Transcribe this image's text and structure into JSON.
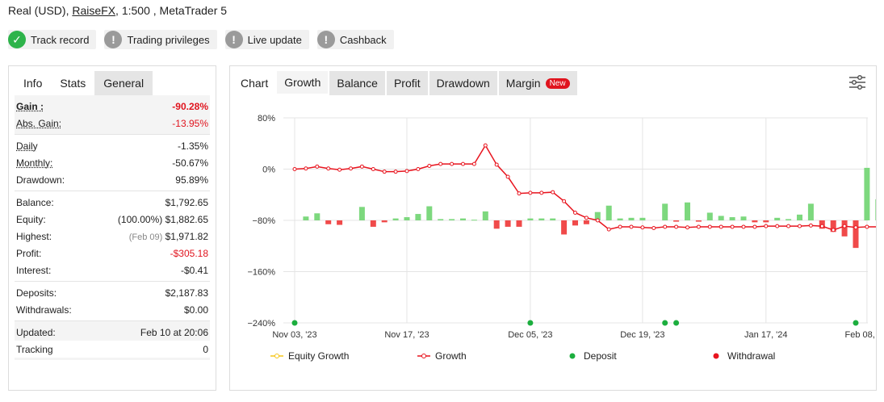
{
  "header": {
    "prefix": "Real (USD), ",
    "broker": "RaiseFX",
    "suffix": ", 1:500 , MetaTrader 5"
  },
  "badges": [
    {
      "label": "Track record",
      "icon": "check-icon",
      "status": "ok"
    },
    {
      "label": "Trading privileges",
      "icon": "exclamation-icon",
      "status": "grey"
    },
    {
      "label": "Live update",
      "icon": "exclamation-icon",
      "status": "grey"
    },
    {
      "label": "Cashback",
      "icon": "exclamation-icon",
      "status": "grey"
    }
  ],
  "left_tabs": {
    "info": "Info",
    "stats": "Stats",
    "general": "General"
  },
  "stats": {
    "gain_label": "Gain :",
    "gain_value": "-90.28%",
    "abs_gain_label": "Abs. Gain:",
    "abs_gain_value": "-13.95%",
    "daily_label": "Daily",
    "daily_value": "-1.35%",
    "monthly_label": "Monthly:",
    "monthly_value": "-50.67%",
    "drawdown_label": "Drawdown:",
    "drawdown_value": "95.89%",
    "balance_label": "Balance:",
    "balance_value": "$1,792.65",
    "equity_label": "Equity:",
    "equity_value": "(100.00%) $1,882.65",
    "highest_label": "Highest:",
    "highest_date": "(Feb 09)",
    "highest_value": "$1,971.82",
    "profit_label": "Profit:",
    "profit_value": "-$305.18",
    "interest_label": "Interest:",
    "interest_value": "-$0.41",
    "deposits_label": "Deposits:",
    "deposits_value": "$2,187.83",
    "withdrawals_label": "Withdrawals:",
    "withdrawals_value": "$0.00",
    "updated_label": "Updated:",
    "updated_value": "Feb 10 at 20:06",
    "tracking_label": "Tracking",
    "tracking_value": "0"
  },
  "right_tabs": {
    "chart": "Chart",
    "growth": "Growth",
    "balance": "Balance",
    "profit": "Profit",
    "drawdown": "Drawdown",
    "margin": "Margin",
    "new_badge": "New"
  },
  "chart_data": {
    "type": "line",
    "y_ticks": [
      "80%",
      "0%",
      "−80%",
      "−160%",
      "−240%"
    ],
    "y_tick_values": [
      80,
      0,
      -80,
      -160,
      -240
    ],
    "ylim": [
      -240,
      80
    ],
    "x_ticks": [
      "Nov 03, '23",
      "Nov 17, '23",
      "Dec 05, '23",
      "Dec 19, '23",
      "Jan 17, '24",
      "Feb 08, '24"
    ],
    "x_tick_index": [
      0,
      10,
      21,
      31,
      42,
      51
    ],
    "point_count": 53,
    "growth": [
      0,
      1,
      4,
      1,
      -1,
      1,
      4,
      0,
      -4,
      -4,
      -3,
      0,
      5,
      8,
      8,
      8,
      8,
      37,
      7,
      -12,
      -38,
      -37,
      -37,
      -36,
      -50,
      -68,
      -76,
      -80,
      -94,
      -90,
      -90,
      -91,
      -92,
      -90,
      -90,
      -91,
      -90,
      -90,
      -90,
      -90,
      -90,
      -90,
      -89,
      -89,
      -89,
      -89,
      -88,
      -89,
      -95,
      -89,
      -91,
      -90,
      -90
    ],
    "growth_bars": [
      0,
      6,
      11,
      -6,
      -7,
      0,
      21,
      -10,
      -3,
      3,
      5,
      10,
      22,
      2,
      2,
      3,
      1,
      14,
      -13,
      -10,
      -10,
      3,
      3,
      3,
      -22,
      -8,
      -6,
      13,
      23,
      3,
      4,
      4,
      0,
      26,
      -2,
      28,
      -2,
      12,
      7,
      5,
      6,
      -3,
      -3,
      4,
      2,
      9,
      26,
      -13,
      -18,
      -25,
      -43,
      82,
      33
    ],
    "deposit_points": [
      0,
      21,
      33,
      34,
      50
    ],
    "withdrawal_points": [],
    "legend": [
      "Equity Growth",
      "Growth",
      "Deposit",
      "Withdrawal"
    ],
    "colors": {
      "growth": "#e8141e",
      "equity": "#f5c518",
      "deposit": "#1cae3e",
      "withdrawal": "#e8141e",
      "bar_up": "#7dd87e",
      "bar_down": "#f04a4a",
      "grid": "#e4e4e4"
    }
  }
}
